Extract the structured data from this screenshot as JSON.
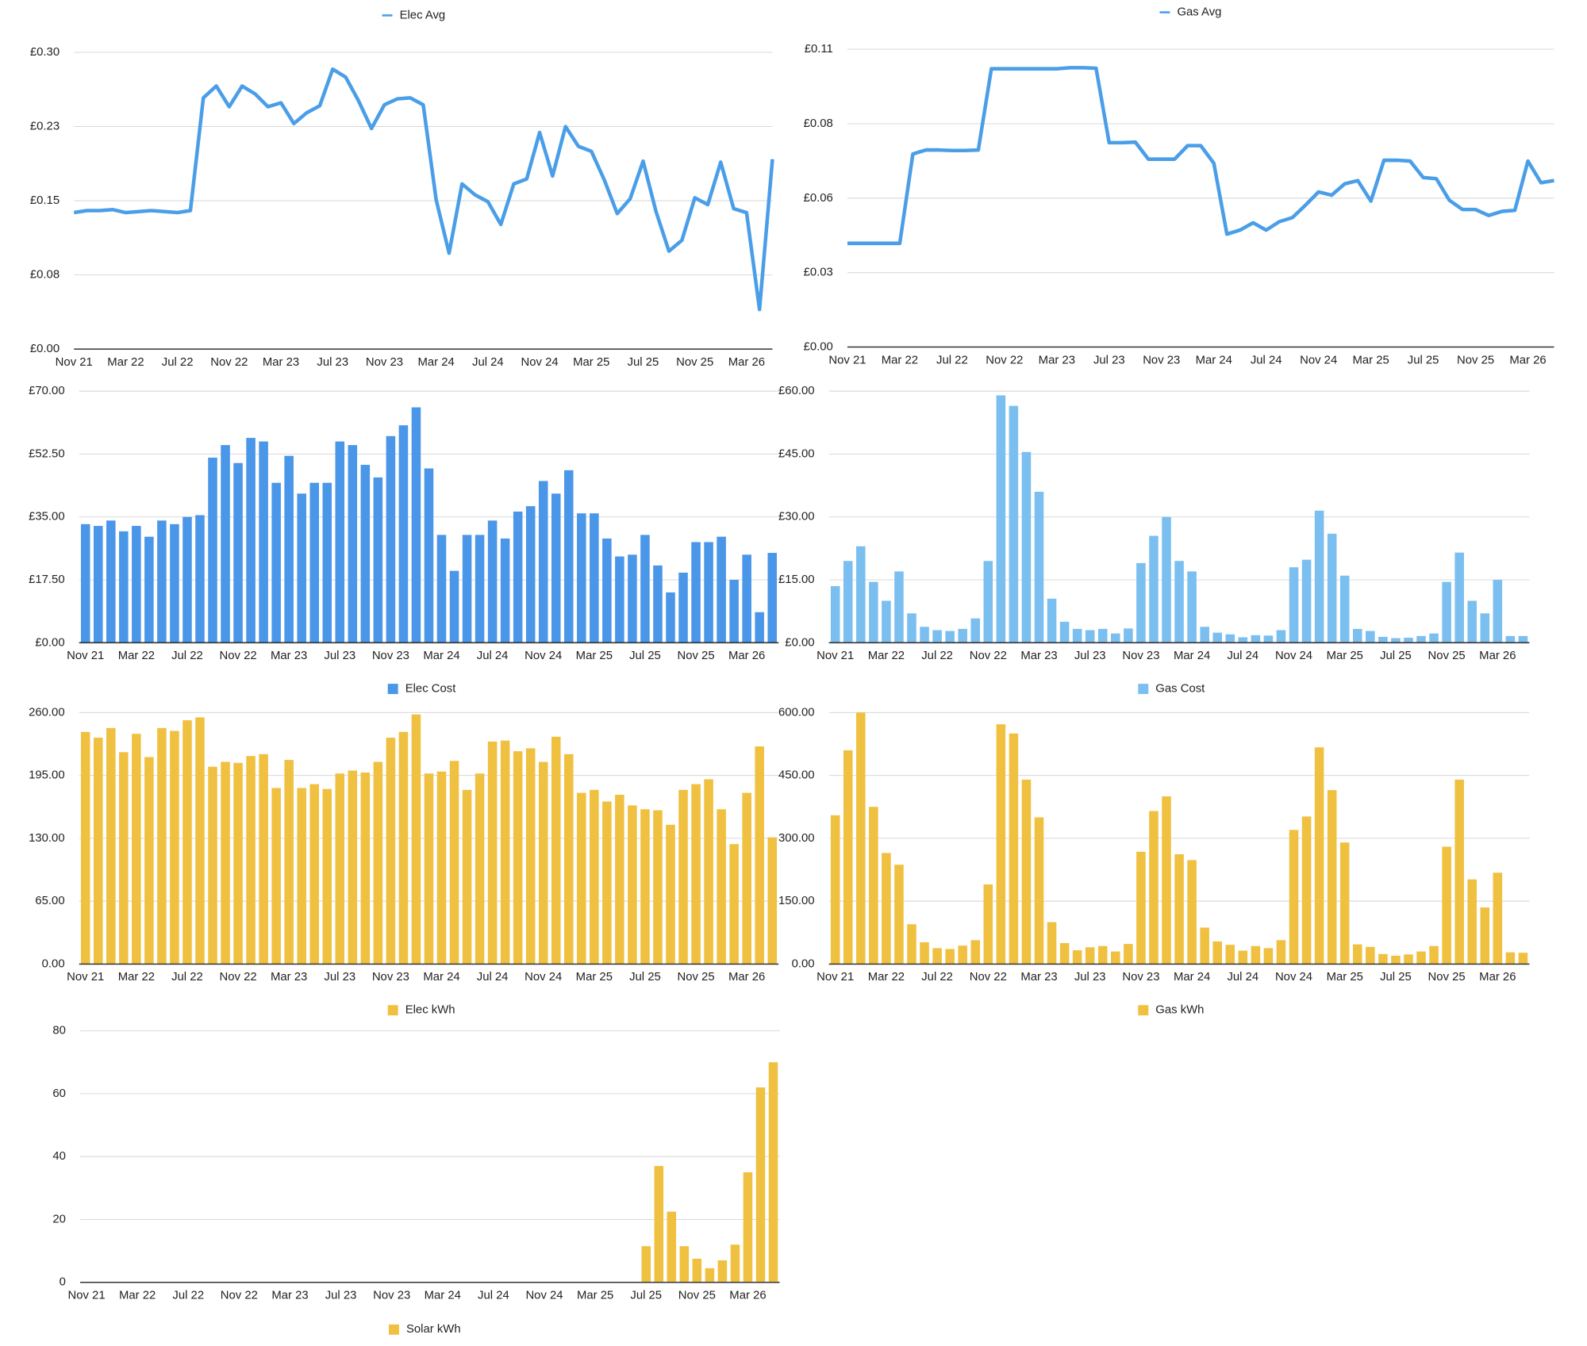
{
  "chart_data": [
    {
      "type": "line",
      "legend": "top",
      "categories": [
        "Nov 21",
        null,
        null,
        null,
        "Mar 22",
        null,
        null,
        null,
        "Jul 22",
        null,
        null,
        null,
        "Nov 22",
        null,
        null,
        null,
        "Mar 23",
        null,
        null,
        null,
        "Jul 23",
        null,
        null,
        null,
        "Nov 23",
        null,
        null,
        null,
        "Mar 24",
        null,
        null,
        null,
        "Jul 24",
        null,
        null,
        null,
        "Nov 24",
        null,
        null,
        null,
        "Mar 25",
        null,
        null,
        null,
        "Jul 25",
        null,
        null,
        null,
        "Nov 25",
        null,
        null,
        null,
        "Mar 26",
        null,
        null
      ],
      "series": [
        {
          "name": "Elec Avg",
          "color": "#4a9ee8",
          "values": [
            0.138,
            0.14,
            0.14,
            0.141,
            0.138,
            0.139,
            0.14,
            0.139,
            0.138,
            0.14,
            0.254,
            0.266,
            0.245,
            0.266,
            0.258,
            0.245,
            0.249,
            0.228,
            0.239,
            0.246,
            0.283,
            0.275,
            0.251,
            0.223,
            0.247,
            0.253,
            0.254,
            0.247,
            0.151,
            0.097,
            0.167,
            0.156,
            0.149,
            0.126,
            0.167,
            0.172,
            0.219,
            0.175,
            0.225,
            0.205,
            0.2,
            0.171,
            0.137,
            0.152,
            0.19,
            0.139,
            0.099,
            0.11,
            0.153,
            0.146,
            0.189,
            0.142,
            0.138,
            0.04,
            0.192
          ]
        }
      ],
      "ylim": [
        0,
        0.3
      ],
      "yticks": [
        {
          "value": 0,
          "label": "£0.00"
        },
        {
          "value": 0.075,
          "label": "£0.08"
        },
        {
          "value": 0.15,
          "label": "£0.15"
        },
        {
          "value": 0.225,
          "label": "£0.23"
        },
        {
          "value": 0.3,
          "label": "£0.30"
        }
      ],
      "grid": true
    },
    {
      "type": "line",
      "legend": "top",
      "categories": [
        "Nov 21",
        null,
        null,
        null,
        "Mar 22",
        null,
        null,
        null,
        "Jul 22",
        null,
        null,
        null,
        "Nov 22",
        null,
        null,
        null,
        "Mar 23",
        null,
        null,
        null,
        "Jul 23",
        null,
        null,
        null,
        "Nov 23",
        null,
        null,
        null,
        "Mar 24",
        null,
        null,
        null,
        "Jul 24",
        null,
        null,
        null,
        "Nov 24",
        null,
        null,
        null,
        "Mar 25",
        null,
        null,
        null,
        "Jul 25",
        null,
        null,
        null,
        "Nov 25",
        null,
        null,
        null,
        "Mar 26",
        null,
        null
      ],
      "series": [
        {
          "name": "Gas Avg",
          "color": "#4a9ee8",
          "values": [
            0.0383,
            0.0383,
            0.0383,
            0.0383,
            0.0383,
            0.0713,
            0.0728,
            0.0728,
            0.0726,
            0.0726,
            0.0728,
            0.1028,
            0.1028,
            0.1028,
            0.1028,
            0.1028,
            0.1028,
            0.1032,
            0.1032,
            0.103,
            0.0755,
            0.0755,
            0.0757,
            0.0694,
            0.0694,
            0.0694,
            0.0744,
            0.0744,
            0.0679,
            0.0417,
            0.0432,
            0.0459,
            0.0432,
            0.0463,
            0.0478,
            0.0524,
            0.0573,
            0.0561,
            0.0603,
            0.0615,
            0.0539,
            0.069,
            0.069,
            0.0687,
            0.0626,
            0.0622,
            0.0542,
            0.0508,
            0.0508,
            0.0486,
            0.0501,
            0.0505,
            0.0687,
            0.0607,
            0.0615
          ]
        }
      ],
      "ylim": [
        0,
        0.11
      ],
      "yticks": [
        {
          "value": 0,
          "label": "£0.00"
        },
        {
          "value": 0.0275,
          "label": "£0.03"
        },
        {
          "value": 0.055,
          "label": "£0.06"
        },
        {
          "value": 0.0825,
          "label": "£0.08"
        },
        {
          "value": 0.11,
          "label": "£0.11"
        }
      ],
      "grid": true
    },
    {
      "type": "bar",
      "legend": "bottom",
      "categories": [
        "Nov 21",
        null,
        null,
        null,
        "Mar 22",
        null,
        null,
        null,
        "Jul 22",
        null,
        null,
        null,
        "Nov 22",
        null,
        null,
        null,
        "Mar 23",
        null,
        null,
        null,
        "Jul 23",
        null,
        null,
        null,
        "Nov 23",
        null,
        null,
        null,
        "Mar 24",
        null,
        null,
        null,
        "Jul 24",
        null,
        null,
        null,
        "Nov 24",
        null,
        null,
        null,
        "Mar 25",
        null,
        null,
        null,
        "Jul 25",
        null,
        null,
        null,
        "Nov 25",
        null,
        null,
        null,
        "Mar 26",
        null,
        null
      ],
      "series": [
        {
          "name": "Elec Cost",
          "color": "#4a96e8",
          "values": [
            33,
            32.5,
            34,
            31,
            32.5,
            29.5,
            34,
            33,
            35,
            35.5,
            51.5,
            55,
            50,
            57,
            56,
            44.5,
            52,
            41.5,
            44.5,
            44.5,
            56,
            55,
            49.5,
            46,
            57.5,
            60.5,
            65.5,
            48.5,
            30,
            20,
            30,
            30,
            34,
            29,
            36.5,
            38,
            45,
            41.5,
            48,
            36,
            36,
            29,
            24,
            24.5,
            30,
            21.5,
            14,
            19.5,
            28,
            28,
            29.5,
            17.5,
            24.5,
            8.5,
            25
          ]
        }
      ],
      "ylim": [
        0,
        70
      ],
      "yticks": [
        {
          "value": 0,
          "label": "£0.00"
        },
        {
          "value": 17.5,
          "label": "£17.50"
        },
        {
          "value": 35,
          "label": "£35.00"
        },
        {
          "value": 52.5,
          "label": "£52.50"
        },
        {
          "value": 70,
          "label": "£70.00"
        }
      ],
      "grid": true
    },
    {
      "type": "bar",
      "legend": "bottom",
      "categories": [
        "Nov 21",
        null,
        null,
        null,
        "Mar 22",
        null,
        null,
        null,
        "Jul 22",
        null,
        null,
        null,
        "Nov 22",
        null,
        null,
        null,
        "Mar 23",
        null,
        null,
        null,
        "Jul 23",
        null,
        null,
        null,
        "Nov 23",
        null,
        null,
        null,
        "Mar 24",
        null,
        null,
        null,
        "Jul 24",
        null,
        null,
        null,
        "Nov 24",
        null,
        null,
        null,
        "Mar 25",
        null,
        null,
        null,
        "Jul 25",
        null,
        null,
        null,
        "Nov 25",
        null,
        null,
        null,
        "Mar 26",
        null,
        null
      ],
      "series": [
        {
          "name": "Gas Cost",
          "color": "#7bbff0",
          "values": [
            13.5,
            19.5,
            23,
            14.5,
            10,
            17,
            7,
            3.8,
            3,
            2.8,
            3.3,
            5.8,
            19.5,
            59,
            56.5,
            45.5,
            36,
            10.5,
            5,
            3.3,
            3,
            3.3,
            2.2,
            3.4,
            19,
            25.5,
            30,
            19.5,
            17,
            3.8,
            2.4,
            2,
            1.3,
            1.8,
            1.7,
            3,
            18,
            19.8,
            31.5,
            26,
            16,
            3.3,
            2.8,
            1.4,
            1.1,
            1.2,
            1.6,
            2.2,
            14.5,
            21.5,
            10,
            7,
            15,
            1.6,
            1.6
          ]
        }
      ],
      "ylim": [
        0,
        60
      ],
      "yticks": [
        {
          "value": 0,
          "label": "£0.00"
        },
        {
          "value": 15,
          "label": "£15.00"
        },
        {
          "value": 30,
          "label": "£30.00"
        },
        {
          "value": 45,
          "label": "£45.00"
        },
        {
          "value": 60,
          "label": "£60.00"
        }
      ],
      "grid": true
    },
    {
      "type": "bar",
      "legend": "bottom",
      "categories": [
        "Nov 21",
        null,
        null,
        null,
        "Mar 22",
        null,
        null,
        null,
        "Jul 22",
        null,
        null,
        null,
        "Nov 22",
        null,
        null,
        null,
        "Mar 23",
        null,
        null,
        null,
        "Jul 23",
        null,
        null,
        null,
        "Nov 23",
        null,
        null,
        null,
        "Mar 24",
        null,
        null,
        null,
        "Jul 24",
        null,
        null,
        null,
        "Nov 24",
        null,
        null,
        null,
        "Mar 25",
        null,
        null,
        null,
        "Jul 25",
        null,
        null,
        null,
        "Nov 25",
        null,
        null,
        null,
        "Mar 26",
        null,
        null
      ],
      "series": [
        {
          "name": "Elec kWh",
          "color": "#f0c040",
          "values": [
            240,
            234,
            244,
            219,
            238,
            214,
            244,
            241,
            252,
            255,
            204,
            209,
            208,
            215,
            217,
            182,
            211,
            182,
            186,
            181,
            197,
            200,
            198,
            209,
            234,
            240,
            258,
            197,
            199,
            210,
            180,
            197,
            230,
            231,
            220,
            223,
            209,
            235,
            217,
            177,
            180,
            168,
            175,
            164,
            160,
            159,
            144,
            180,
            186,
            191,
            160,
            124,
            177,
            225,
            131
          ]
        }
      ],
      "ylim": [
        0,
        260
      ],
      "yticks": [
        {
          "value": 0,
          "label": "0.00"
        },
        {
          "value": 65,
          "label": "65.00"
        },
        {
          "value": 130,
          "label": "130.00"
        },
        {
          "value": 195,
          "label": "195.00"
        },
        {
          "value": 260,
          "label": "260.00"
        }
      ],
      "grid": true
    },
    {
      "type": "bar",
      "legend": "bottom",
      "categories": [
        "Nov 21",
        null,
        null,
        null,
        "Mar 22",
        null,
        null,
        null,
        "Jul 22",
        null,
        null,
        null,
        "Nov 22",
        null,
        null,
        null,
        "Mar 23",
        null,
        null,
        null,
        "Jul 23",
        null,
        null,
        null,
        "Nov 23",
        null,
        null,
        null,
        "Mar 24",
        null,
        null,
        null,
        "Jul 24",
        null,
        null,
        null,
        "Nov 24",
        null,
        null,
        null,
        "Mar 25",
        null,
        null,
        null,
        "Jul 25",
        null,
        null,
        null,
        "Nov 25",
        null,
        null,
        null,
        "Mar 26",
        null,
        null
      ],
      "series": [
        {
          "name": "Gas kWh",
          "color": "#f0c040",
          "values": [
            355,
            510,
            600,
            375,
            265,
            237,
            95,
            52,
            38,
            36,
            44,
            57,
            190,
            572,
            550,
            440,
            350,
            100,
            50,
            33,
            40,
            43,
            30,
            48,
            268,
            365,
            400,
            262,
            248,
            87,
            54,
            46,
            32,
            43,
            38,
            57,
            320,
            352,
            517,
            415,
            290,
            47,
            41,
            24,
            20,
            23,
            30,
            43,
            280,
            440,
            202,
            135,
            218,
            28,
            27
          ]
        }
      ],
      "ylim": [
        0,
        600
      ],
      "yticks": [
        {
          "value": 0,
          "label": "0.00"
        },
        {
          "value": 150,
          "label": "150.00"
        },
        {
          "value": 300,
          "label": "300.00"
        },
        {
          "value": 450,
          "label": "450.00"
        },
        {
          "value": 600,
          "label": "600.00"
        }
      ],
      "grid": true
    },
    {
      "type": "bar",
      "legend": "bottom",
      "categories": [
        "Nov 21",
        null,
        null,
        null,
        "Mar 22",
        null,
        null,
        null,
        "Jul 22",
        null,
        null,
        null,
        "Nov 22",
        null,
        null,
        null,
        "Mar 23",
        null,
        null,
        null,
        "Jul 23",
        null,
        null,
        null,
        "Nov 23",
        null,
        null,
        null,
        "Mar 24",
        null,
        null,
        null,
        "Jul 24",
        null,
        null,
        null,
        "Nov 24",
        null,
        null,
        null,
        "Mar 25",
        null,
        null,
        null,
        "Jul 25",
        null,
        null,
        null,
        "Nov 25",
        null,
        null,
        null,
        "Mar 26",
        null,
        null
      ],
      "series": [
        {
          "name": "Solar kWh",
          "color": "#f0c040",
          "values": [
            0,
            0,
            0,
            0,
            0,
            0,
            0,
            0,
            0,
            0,
            0,
            0,
            0,
            0,
            0,
            0,
            0,
            0,
            0,
            0,
            0,
            0,
            0,
            0,
            0,
            0,
            0,
            0,
            0,
            0,
            0,
            0,
            0,
            0,
            0,
            0,
            0,
            0,
            0,
            0,
            0,
            0,
            0,
            0,
            11.5,
            37,
            22.5,
            11.5,
            7.5,
            4.5,
            7,
            12,
            35,
            62,
            70
          ]
        }
      ],
      "ylim": [
        0,
        80
      ],
      "yticks": [
        0,
        20,
        40,
        60,
        80
      ],
      "grid": true
    }
  ]
}
